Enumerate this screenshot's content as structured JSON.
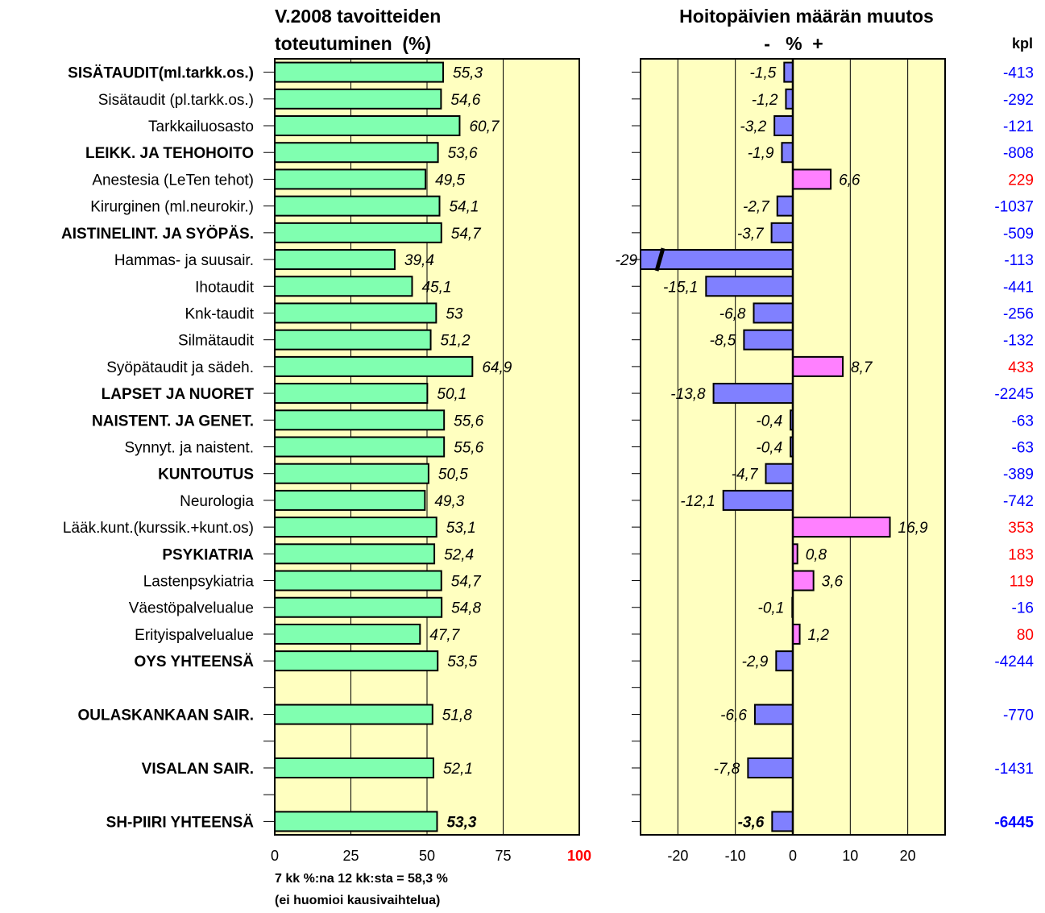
{
  "left_chart": {
    "title_line1": "V.2008 tavoitteiden",
    "title_line2": "toteutuminen  (%)",
    "x_ticks": [
      "0",
      "25",
      "50",
      "75",
      "100"
    ],
    "xlim": [
      0,
      100
    ],
    "footnote_line1": "7 kk %:na 12 kk:sta = 58,3 %",
    "footnote_line2": "(ei huomioi kausivaihtelua)"
  },
  "right_chart": {
    "title_line1": "Hoitopäivien määrän muutos",
    "title_line2": "-   %  +",
    "kpl_header": "kpl",
    "x_ticks": [
      "-20",
      "-10",
      "0",
      "10",
      "20"
    ],
    "xlim": [
      -26.5,
      26.5
    ],
    "broken_bar_note": "-29"
  },
  "colors": {
    "plot_background": "#ffffc0",
    "percent_bar": "#80ffb0",
    "negative_bar": "#8080ff",
    "positive_bar": "#ff80ff",
    "negative_kpl": "#0000ff",
    "positive_kpl": "#ff0000",
    "tick_100": "#ff0000"
  },
  "chart_data": [
    {
      "type": "bar",
      "orientation": "horizontal",
      "title": "V.2008 tavoitteiden toteutuminen  (%)",
      "xlim": [
        0,
        100
      ],
      "grid": true,
      "categories": [
        "SISÄTAUDIT(ml.tarkk.os.)",
        "Sisätaudit (pl.tarkk.os.)",
        "Tarkkailuosasto",
        "LEIKK. JA TEHOHOITO",
        "Anestesia (LeTen tehot)",
        "Kirurginen (ml.neurokir.)",
        "AISTINELINT. JA SYÖPÄS.",
        "Hammas- ja suusair.",
        "Ihotaudit",
        "Knk-taudit",
        "Silmätaudit",
        "Syöpätaudit ja sädeh.",
        "LAPSET JA NUORET",
        "NAISTENT. JA GENET.",
        "Synnyt. ja naistent.",
        "KUNTOUTUS",
        "Neurologia",
        "Lääk.kunt.(kurssik.+kunt.os)",
        "PSYKIATRIA",
        "Lastenpsykiatria",
        "Väestöpalvelualue",
        "Erityispalvelualue",
        "OYS YHTEENSÄ",
        "",
        "OULASKANKAAN SAIR.",
        "",
        "VISALAN SAIR.",
        "",
        "SH-PIIRI YHTEENSÄ"
      ],
      "bold": [
        true,
        false,
        false,
        true,
        false,
        false,
        true,
        false,
        false,
        false,
        false,
        false,
        true,
        true,
        false,
        true,
        false,
        false,
        true,
        false,
        false,
        false,
        true,
        false,
        true,
        false,
        true,
        false,
        true
      ],
      "values": [
        55.3,
        54.6,
        60.7,
        53.6,
        49.5,
        54.1,
        54.7,
        39.4,
        45.1,
        53,
        51.2,
        64.9,
        50.1,
        55.6,
        55.6,
        50.5,
        49.3,
        53.1,
        52.4,
        54.7,
        54.8,
        47.7,
        53.5,
        null,
        51.8,
        null,
        52.1,
        null,
        53.3
      ],
      "labels": [
        "55,3",
        "54,6",
        "60,7",
        "53,6",
        "49,5",
        "54,1",
        "54,7",
        "39,4",
        "45,1",
        "53",
        "51,2",
        "64,9",
        "50,1",
        "55,6",
        "55,6",
        "50,5",
        "49,3",
        "53,1",
        "52,4",
        "54,7",
        "54,8",
        "47,7",
        "53,5",
        "",
        "51,8",
        "",
        "52,1",
        "",
        "53,3"
      ]
    },
    {
      "type": "bar",
      "orientation": "horizontal",
      "title": "Hoitopäivien määrän muutos",
      "xlim": [
        -26.5,
        26.5
      ],
      "grid": true,
      "values": [
        -1.5,
        -1.2,
        -3.2,
        -1.9,
        6.6,
        -2.7,
        -3.7,
        -29,
        -15.1,
        -6.8,
        -8.5,
        8.7,
        -13.8,
        -0.4,
        -0.4,
        -4.7,
        -12.1,
        16.9,
        0.8,
        3.6,
        -0.1,
        1.2,
        -2.9,
        null,
        -6.6,
        null,
        -7.8,
        null,
        -3.6
      ],
      "labels": [
        "-1,5",
        "-1,2",
        "-3,2",
        "-1,9",
        "6,6",
        "-2,7",
        "-3,7",
        "-29",
        "-15,1",
        "-6,8",
        "-8,5",
        "8,7",
        "-13,8",
        "-0,4",
        "-0,4",
        "-4,7",
        "-12,1",
        "16,9",
        "0,8",
        "3,6",
        "-0,1",
        "1,2",
        "-2,9",
        "",
        "-6,6",
        "",
        "-7,8",
        "",
        "-3,6"
      ],
      "kpl": [
        "-413",
        "-292",
        "-121",
        "-808",
        "229",
        "-1037",
        "-509",
        "-113",
        "-441",
        "-256",
        "-132",
        "433",
        "-2245",
        "-63",
        "-63",
        "-389",
        "-742",
        "353",
        "183",
        "119",
        "-16",
        "80",
        "-4244",
        "",
        "-770",
        "",
        "-1431",
        "",
        "-6445"
      ]
    }
  ]
}
